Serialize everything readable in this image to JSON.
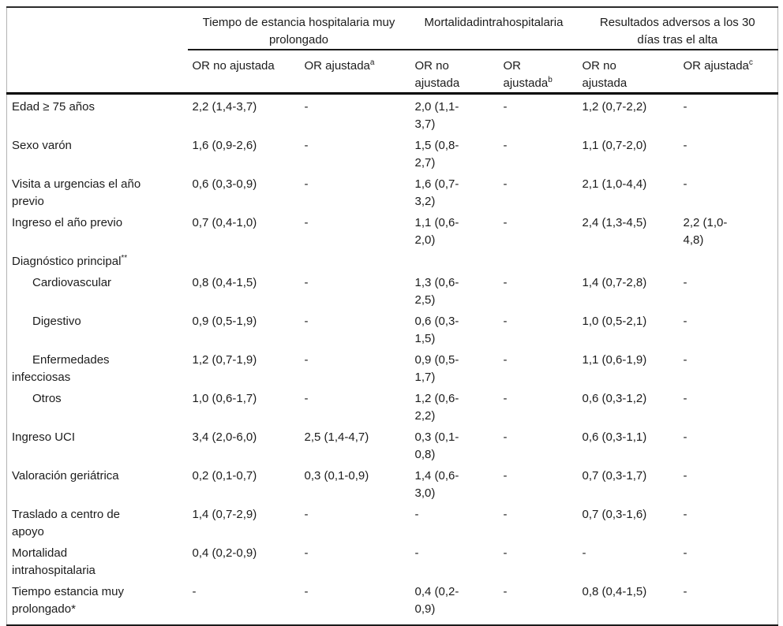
{
  "colors": {
    "text": "#1c1c1c",
    "rule_heavy": "#000000",
    "rule_dark": "#1a1a1a",
    "rule_side": "#b3b3b3",
    "background": "#ffffff"
  },
  "table": {
    "col_groups": [
      {
        "title": "Tiempo de estancia hospitalaria muy\nprolongado"
      },
      {
        "title": "Mortalidadintrahospitalaria"
      },
      {
        "title": "Resultados adversos a los 30\ndías tras el alta"
      }
    ],
    "sub_headers": [
      {
        "text": "OR no ajustada",
        "sup": ""
      },
      {
        "text": "OR ajustada",
        "sup": "a"
      },
      {
        "text": "OR no\najustada",
        "sup": ""
      },
      {
        "text": "OR\najustada",
        "sup": "b"
      },
      {
        "text": "OR no\najustada",
        "sup": ""
      },
      {
        "text": "OR ajustada",
        "sup": "c"
      }
    ],
    "rows": [
      {
        "label": "Edad ≥ 75 años",
        "sup": "",
        "indent": false,
        "compact": false,
        "cells": [
          "2,2 (1,4-3,7)",
          "-",
          "2,0 (1,1-\n3,7)",
          "-",
          "1,2 (0,7-2,2)",
          "-"
        ]
      },
      {
        "label": "Sexo varón",
        "sup": "",
        "indent": false,
        "compact": false,
        "cells": [
          "1,6 (0,9-2,6)",
          "-",
          "1,5 (0,8-\n2,7)",
          "-",
          "1,1 (0,7-2,0)",
          "-"
        ]
      },
      {
        "label": "Visita a urgencias el año\nprevio",
        "sup": "",
        "indent": false,
        "compact": false,
        "cells": [
          "0,6 (0,3-0,9)",
          "-",
          "1,6 (0,7-\n3,2)",
          "-",
          "2,1 (1,0-4,4)",
          "-"
        ]
      },
      {
        "label": "Ingreso el año previo",
        "sup": "",
        "indent": false,
        "compact": false,
        "cells": [
          "0,7 (0,4-1,0)",
          "-",
          "1,1 (0,6-\n2,0)",
          "-",
          "2,4 (1,3-4,5)",
          "2,2 (1,0-\n4,8)"
        ]
      },
      {
        "label": "Diagnóstico principal",
        "sup": "**",
        "indent": false,
        "compact": true,
        "cells": [
          "",
          "",
          "",
          "",
          "",
          ""
        ]
      },
      {
        "label": "Cardiovascular",
        "sup": "",
        "indent": true,
        "compact": false,
        "cells": [
          "0,8 (0,4-1,5)",
          "-",
          "1,3 (0,6-\n2,5)",
          "-",
          "1,4 (0,7-2,8)",
          "-"
        ]
      },
      {
        "label": "Digestivo",
        "sup": "",
        "indent": true,
        "compact": false,
        "cells": [
          "0,9 (0,5-1,9)",
          "-",
          "0,6 (0,3-\n1,5)",
          "-",
          "1,0 (0,5-2,1)",
          "-"
        ]
      },
      {
        "label": "Enfermedades\ninfecciosas",
        "sup": "",
        "indent": true,
        "compact": false,
        "cells": [
          "1,2 (0,7-1,9)",
          "-",
          "0,9 (0,5-\n1,7)",
          "-",
          "1,1 (0,6-1,9)",
          "-"
        ]
      },
      {
        "label": "Otros",
        "sup": "",
        "indent": true,
        "compact": false,
        "cells": [
          "1,0 (0,6-1,7)",
          "-",
          "1,2 (0,6-\n2,2)",
          "-",
          "0,6 (0,3-1,2)",
          "-"
        ]
      },
      {
        "label": "Ingreso UCI",
        "sup": "",
        "indent": false,
        "compact": false,
        "cells": [
          "3,4 (2,0-6,0)",
          "2,5 (1,4-4,7)",
          "0,3 (0,1-\n0,8)",
          "-",
          "0,6 (0,3-1,1)",
          "-"
        ]
      },
      {
        "label": "Valoración geriátrica",
        "sup": "",
        "indent": false,
        "compact": false,
        "cells": [
          "0,2 (0,1-0,7)",
          "0,3 (0,1-0,9)",
          "1,4 (0,6-\n3,0)",
          "-",
          "0,7 (0,3-1,7)",
          "-"
        ]
      },
      {
        "label": "Traslado a centro de\napoyo",
        "sup": "",
        "indent": false,
        "compact": false,
        "cells": [
          "1,4 (0,7-2,9)",
          "-",
          "-",
          "-",
          "0,7 (0,3-1,6)",
          "-"
        ]
      },
      {
        "label": "Mortalidad\nintrahospitalaria",
        "sup": "",
        "indent": false,
        "compact": false,
        "cells": [
          "0,4 (0,2-0,9)",
          "-",
          "-",
          "-",
          "-",
          "-"
        ]
      },
      {
        "label": "Tiempo estancia muy\nprolongado*",
        "sup": "",
        "indent": false,
        "compact": false,
        "cells": [
          "-",
          "-",
          "0,4 (0,2-\n0,9)",
          "-",
          "0,8 (0,4-1,5)",
          "-"
        ]
      }
    ]
  }
}
